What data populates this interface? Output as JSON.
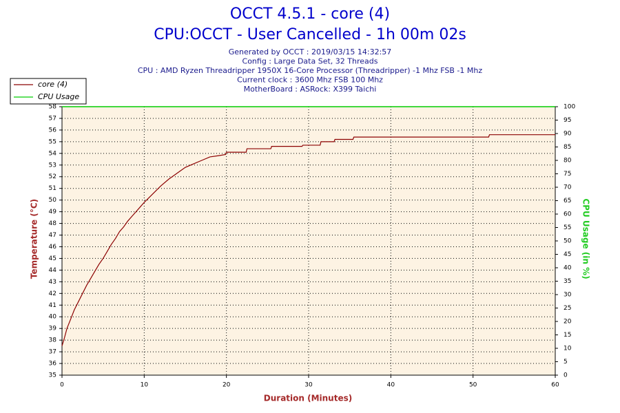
{
  "chart_data": {
    "type": "line",
    "title": "OCCT 4.5.1 - core (4)",
    "subtitle": "CPU:OCCT - User Cancelled - 1h 00m 02s",
    "notes": [
      "Generated by OCCT : 2019/03/15 14:32:57",
      "Config : Large Data Set, 32 Threads",
      "CPU : AMD Ryzen Threadripper 1950X 16-Core Processor (Threadripper) -1 Mhz FSB -1 Mhz",
      "Current clock : 3600 Mhz FSB 100 Mhz",
      "MotherBoard : ASRock: X399 Taichi"
    ],
    "xlabel": "Duration (Minutes)",
    "ylabel": "Temperature (°C)",
    "y2label": "CPU Usage (in %)",
    "xlim": [
      0,
      60
    ],
    "xticks": [
      0,
      10,
      20,
      30,
      40,
      50,
      60
    ],
    "ylim": [
      35,
      58
    ],
    "yticks": [
      35,
      36,
      37,
      38,
      39,
      40,
      41,
      42,
      43,
      44,
      45,
      46,
      47,
      48,
      49,
      50,
      51,
      52,
      53,
      54,
      55,
      56,
      57,
      58
    ],
    "y2lim": [
      0,
      100
    ],
    "y2ticks": [
      0,
      5,
      10,
      15,
      20,
      25,
      30,
      35,
      40,
      45,
      50,
      55,
      60,
      65,
      70,
      75,
      80,
      85,
      90,
      95,
      100
    ],
    "grid": true,
    "legend": "top-left",
    "x": [
      0,
      0.3,
      0.6,
      1,
      1.5,
      2,
      2.5,
      3,
      3.5,
      4,
      4.5,
      5,
      5.5,
      6,
      6.5,
      7,
      7.5,
      8,
      8.5,
      9,
      9.5,
      10,
      11,
      12,
      13,
      14,
      15,
      16,
      17,
      18,
      19,
      19.9,
      20,
      22.4,
      22.5,
      25.4,
      25.5,
      29.2,
      29.3,
      31.4,
      31.5,
      33.1,
      33.2,
      35.4,
      35.5,
      51.9,
      52,
      60
    ],
    "series": [
      {
        "name": "core (4)",
        "color": "#8b0000",
        "values": [
          37.5,
          38.2,
          39,
          39.7,
          40.6,
          41.3,
          42,
          42.7,
          43.3,
          43.9,
          44.5,
          45,
          45.6,
          46.2,
          46.7,
          47.3,
          47.7,
          48.2,
          48.6,
          49,
          49.4,
          49.8,
          50.5,
          51.2,
          51.8,
          52.3,
          52.8,
          53.1,
          53.4,
          53.7,
          53.8,
          53.9,
          54.1,
          54.1,
          54.4,
          54.4,
          54.6,
          54.6,
          54.7,
          54.7,
          55,
          55,
          55.2,
          55.2,
          55.4,
          55.4,
          55.6,
          55.6
        ]
      },
      {
        "name": "CPU Usage",
        "color": "#00cc00",
        "axis": "y2",
        "x": [
          0,
          60
        ],
        "values": [
          100,
          100
        ]
      }
    ]
  }
}
